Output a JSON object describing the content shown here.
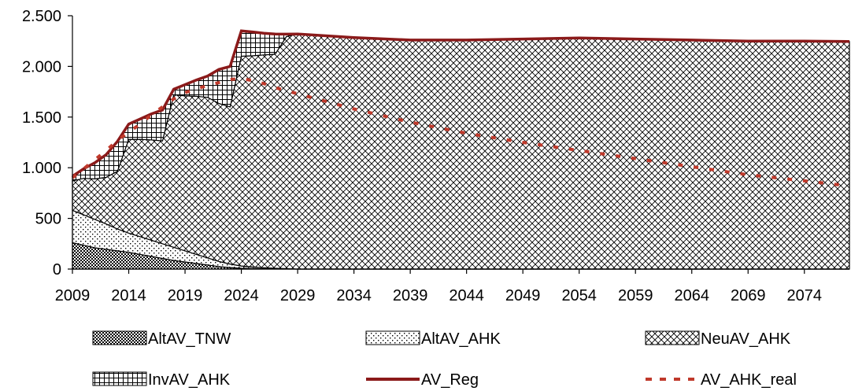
{
  "chart_data": {
    "type": "area",
    "title": "",
    "xlabel": "",
    "ylabel": "",
    "x": [
      2009,
      2010,
      2011,
      2012,
      2013,
      2014,
      2015,
      2016,
      2017,
      2018,
      2019,
      2020,
      2021,
      2022,
      2023,
      2024,
      2025,
      2026,
      2027,
      2028,
      2029,
      2034,
      2039,
      2044,
      2049,
      2054,
      2059,
      2064,
      2069,
      2074,
      2078
    ],
    "xticks": [
      2009,
      2014,
      2019,
      2024,
      2029,
      2034,
      2039,
      2044,
      2049,
      2054,
      2059,
      2064,
      2069,
      2074
    ],
    "xtick_labels": [
      "2009",
      "2014",
      "2019",
      "2024",
      "2029",
      "2034",
      "2039",
      "2044",
      "2049",
      "2054",
      "2059",
      "2064",
      "2069",
      "2074"
    ],
    "xlim": [
      2009,
      2078
    ],
    "ylim": [
      0,
      2500
    ],
    "yticks": [
      0,
      500,
      1000,
      1500,
      2000,
      2500
    ],
    "ytick_labels": [
      "0",
      "500",
      "1.000",
      "1.500",
      "2.000",
      "2.500"
    ],
    "legend_position": "bottom",
    "series": [
      {
        "name": "AltAV_TNW",
        "kind": "area",
        "pattern": "dense-dots",
        "values": [
          260,
          235,
          210,
          195,
          180,
          165,
          145,
          125,
          105,
          85,
          70,
          55,
          40,
          25,
          15,
          8,
          5,
          3,
          2,
          1,
          0,
          0,
          0,
          0,
          0,
          0,
          0,
          0,
          0,
          0,
          0
        ]
      },
      {
        "name": "AltAV_AHK",
        "kind": "area",
        "pattern": "dots",
        "values": [
          320,
          300,
          280,
          250,
          215,
          190,
          175,
          160,
          145,
          130,
          110,
          90,
          70,
          50,
          35,
          22,
          15,
          10,
          6,
          3,
          0,
          0,
          0,
          0,
          0,
          0,
          0,
          0,
          0,
          0,
          0
        ]
      },
      {
        "name": "NeuAV_AHK",
        "kind": "area",
        "pattern": "crosshatch",
        "values": [
          290,
          360,
          400,
          460,
          570,
          925,
          960,
          990,
          1015,
          1505,
          1530,
          1560,
          1585,
          1560,
          1550,
          2070,
          2085,
          2100,
          2112,
          2290,
          2320,
          2285,
          2260,
          2260,
          2270,
          2280,
          2270,
          2260,
          2250,
          2250,
          2245
        ]
      },
      {
        "name": "InvAV_AHK",
        "kind": "area",
        "pattern": "grid",
        "values": [
          45,
          95,
          160,
          225,
          295,
          150,
          200,
          255,
          305,
          55,
          110,
          160,
          210,
          335,
          400,
          250,
          235,
          215,
          200,
          25,
          0,
          0,
          0,
          0,
          0,
          0,
          0,
          0,
          0,
          0,
          0
        ]
      },
      {
        "name": "AV_Reg",
        "kind": "line",
        "style": "solid",
        "color": "#8B1A1A",
        "values": [
          915,
          990,
          1050,
          1130,
          1260,
          1430,
          1480,
          1530,
          1570,
          1775,
          1820,
          1865,
          1905,
          1970,
          2000,
          2350,
          2340,
          2328,
          2320,
          2318,
          2320,
          2285,
          2260,
          2260,
          2270,
          2280,
          2270,
          2260,
          2250,
          2250,
          2245
        ]
      },
      {
        "name": "AV_AHK_real",
        "kind": "line",
        "style": "dashed",
        "color": "#C0392B",
        "values": [
          900,
          990,
          1080,
          1170,
          1270,
          1350,
          1430,
          1520,
          1600,
          1680,
          1740,
          1780,
          1810,
          1840,
          1870,
          1880,
          1860,
          1830,
          1790,
          1760,
          1730,
          1580,
          1450,
          1340,
          1250,
          1170,
          1090,
          1010,
          930,
          870,
          820
        ]
      }
    ]
  }
}
